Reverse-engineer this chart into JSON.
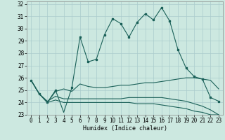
{
  "xlabel": "Humidex (Indice chaleur)",
  "xlim": [
    -0.5,
    23.5
  ],
  "ylim": [
    23,
    32.2
  ],
  "yticks": [
    23,
    24,
    25,
    26,
    27,
    28,
    29,
    30,
    31,
    32
  ],
  "xticks": [
    0,
    1,
    2,
    3,
    4,
    5,
    6,
    7,
    8,
    9,
    10,
    11,
    12,
    13,
    14,
    15,
    16,
    17,
    18,
    19,
    20,
    21,
    22,
    23
  ],
  "background_color": "#cce8e0",
  "grid_color": "#aacccc",
  "line_color": "#1a6058",
  "series1": [
    25.8,
    24.7,
    24.0,
    25.0,
    23.2,
    25.2,
    29.3,
    27.3,
    27.5,
    29.5,
    30.8,
    30.4,
    29.3,
    30.5,
    31.2,
    30.7,
    31.7,
    30.6,
    28.3,
    26.8,
    26.1,
    25.9,
    24.4,
    24.1
  ],
  "series1_markers": [
    0,
    1,
    2,
    3,
    5,
    6,
    7,
    8,
    9,
    10,
    11,
    12,
    13,
    14,
    15,
    16,
    17,
    18,
    19,
    20,
    21,
    22,
    23
  ],
  "series2": [
    25.8,
    24.7,
    24.0,
    24.9,
    25.1,
    24.9,
    25.5,
    25.3,
    25.2,
    25.2,
    25.3,
    25.4,
    25.4,
    25.5,
    25.6,
    25.6,
    25.7,
    25.8,
    25.9,
    26.0,
    26.0,
    25.9,
    25.8,
    25.1
  ],
  "series3": [
    25.8,
    24.7,
    24.1,
    24.5,
    24.3,
    24.3,
    24.3,
    24.3,
    24.3,
    24.3,
    24.3,
    24.3,
    24.4,
    24.4,
    24.4,
    24.4,
    24.4,
    24.3,
    24.2,
    24.1,
    23.9,
    23.7,
    23.4,
    23.0
  ],
  "series4": [
    25.8,
    24.7,
    24.0,
    24.2,
    24.0,
    24.0,
    24.0,
    24.0,
    24.0,
    24.0,
    24.0,
    24.0,
    24.0,
    23.9,
    23.9,
    23.9,
    23.8,
    23.7,
    23.6,
    23.5,
    23.3,
    23.2,
    23.0,
    23.0
  ],
  "marker_size": 2.0,
  "lw": 0.8,
  "font_family": "monospace",
  "tick_fontsize": 5.5,
  "xlabel_fontsize": 6.0
}
